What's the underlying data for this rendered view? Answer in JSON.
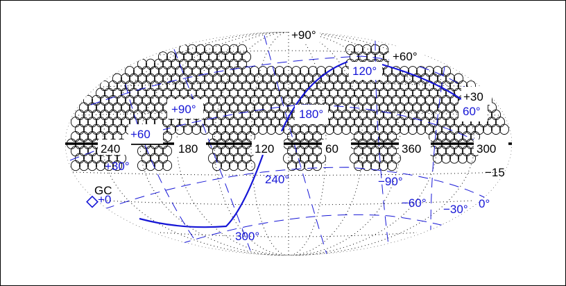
{
  "figure": {
    "projection": "Aitoff-Hammer all-sky",
    "colors": {
      "equatorial_grid": "#000000",
      "galactic_grid": "#1515d6",
      "fields": "#000000",
      "background": "#ffffff"
    }
  },
  "labels": {
    "dec_p90": "+90°",
    "dec_p60": "+60°",
    "dec_p30": "+30",
    "dec_m15": "−15",
    "ra_240": "240",
    "ra_180": "180",
    "ra_120": "120",
    "ra_60": "60",
    "ra_360": "360",
    "ra_300": "300",
    "gc": "GC",
    "gl_120": "120°",
    "gl_180": "180°",
    "gl_240": "240°",
    "gl_300": "300°",
    "gl_60": "60°",
    "gl_0": "0°",
    "gb_p90": "+90°",
    "gb_p60": "+60",
    "gb_p30": "+30°",
    "gb_p0": "+0",
    "gb_m90": "−90°",
    "gb_m60": "−60°",
    "gb_m30": "−30°"
  }
}
